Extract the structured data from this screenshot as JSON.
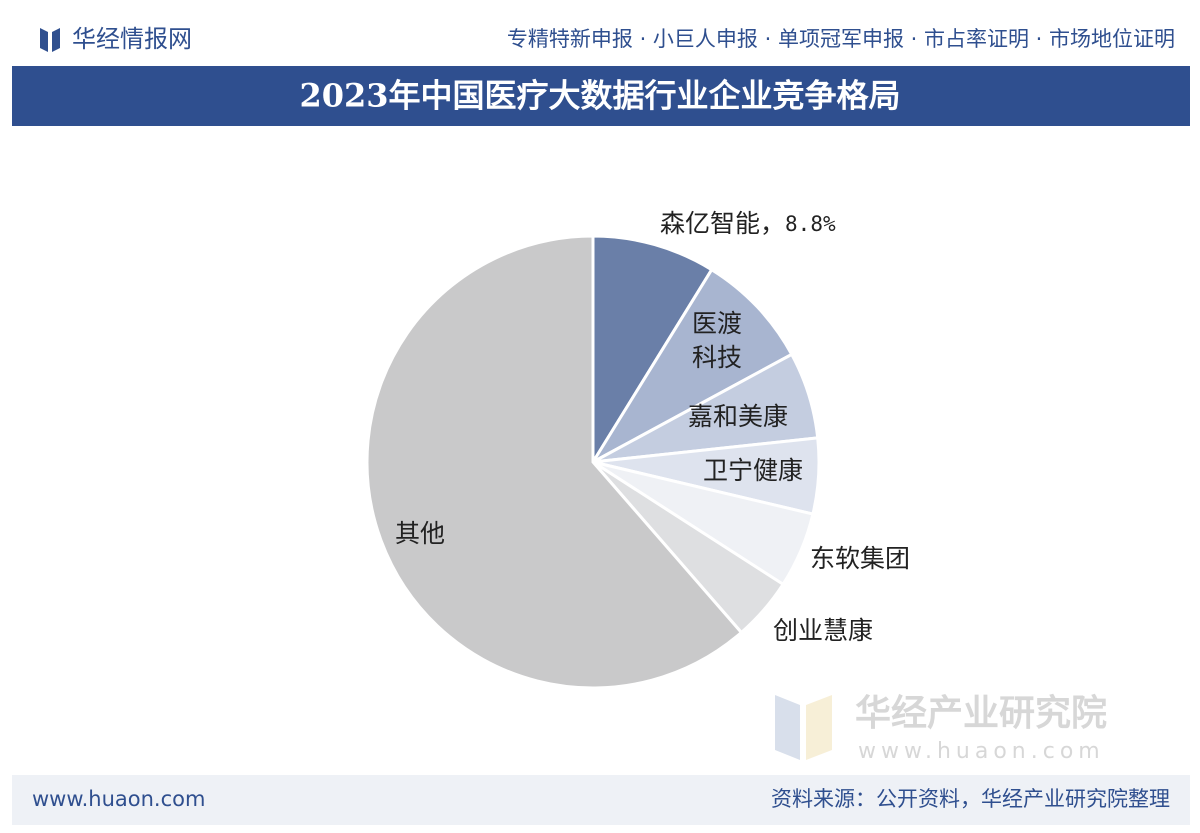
{
  "header": {
    "brand": "华经情报网",
    "nav": "专精特新申报 · 小巨人申报 · 单项冠军申报 · 市占率证明 · 市场地位证明"
  },
  "chart_data": {
    "type": "pie",
    "title": "2023年中国医疗大数据行业企业竞争格局",
    "categories": [
      "森亿智能",
      "医渡科技",
      "嘉和美康",
      "卫宁健康",
      "东软集团",
      "创业慧康",
      "其他"
    ],
    "values": [
      8.8,
      8.3,
      6.2,
      5.4,
      5.4,
      4.5,
      61.4
    ],
    "value_labels": [
      "8.8%",
      null,
      null,
      null,
      null,
      null,
      null
    ],
    "label_separator": "，",
    "colors": [
      "#6a7fa8",
      "#a8b5d0",
      "#c4cde0",
      "#dee3ee",
      "#eff1f5",
      "#dedfe1",
      "#c9c9ca"
    ]
  },
  "watermark": {
    "name": "华经产业研究院",
    "url": "www.huaon.com"
  },
  "footer": {
    "site": "www.huaon.com",
    "source": "资料来源：公开资料，华经产业研究院整理"
  }
}
